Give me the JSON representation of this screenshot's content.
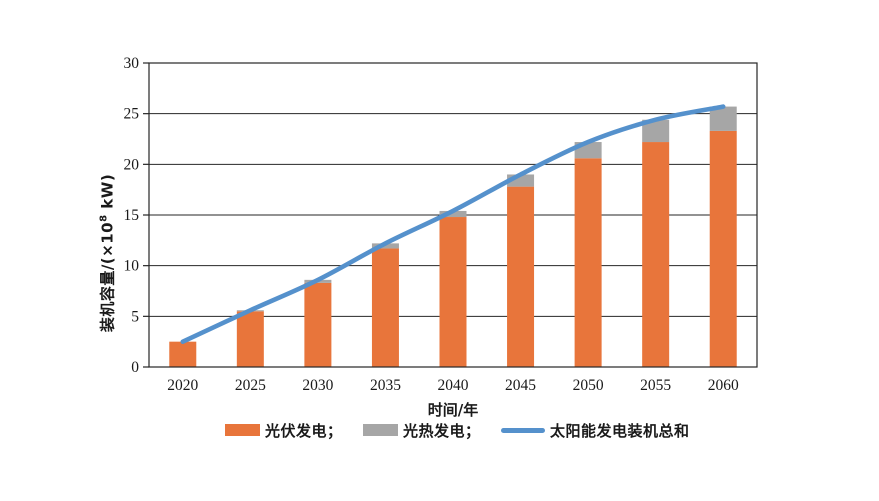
{
  "chart_data": {
    "type": "bar",
    "stacked": true,
    "title": "",
    "categories": [
      "2020",
      "2025",
      "2030",
      "2035",
      "2040",
      "2045",
      "2050",
      "2055",
      "2060"
    ],
    "series": [
      {
        "name": "光伏发电",
        "color": "#E8753B",
        "values": [
          2.5,
          5.5,
          8.3,
          11.7,
          14.8,
          17.8,
          20.6,
          22.2,
          23.3
        ]
      },
      {
        "name": "光热发电",
        "color": "#A6A6A6",
        "values": [
          0,
          0.1,
          0.3,
          0.5,
          0.6,
          1.2,
          1.6,
          2.2,
          2.4
        ]
      }
    ],
    "line_series": {
      "name": "太阳能发电装机总和",
      "color": "#5591CC",
      "values": [
        2.5,
        5.6,
        8.6,
        12.2,
        15.4,
        19.0,
        22.2,
        24.4,
        25.7
      ]
    },
    "xlabel": "时间/年",
    "ylabel": "装机容量/(×10⁸ kW)",
    "ylim": [
      0,
      30
    ],
    "ytick_step": 5,
    "grid": true,
    "legend_position": "bottom",
    "axis_color": "#262626",
    "tick_label_color": "#1a1a1a"
  },
  "labels": {
    "xlabel": "时间/年",
    "ylabel_pre": "装机容量/(×10",
    "ylabel_sup": "8",
    "ylabel_post": " kW)"
  },
  "legend": {
    "items": [
      {
        "label": "光伏发电；",
        "swatch": "bar",
        "color": "#E8753B"
      },
      {
        "label": "光热发电；",
        "swatch": "bar",
        "color": "#A6A6A6"
      },
      {
        "label": "太阳能发电装机总和",
        "swatch": "line",
        "color": "#5591CC"
      }
    ]
  }
}
